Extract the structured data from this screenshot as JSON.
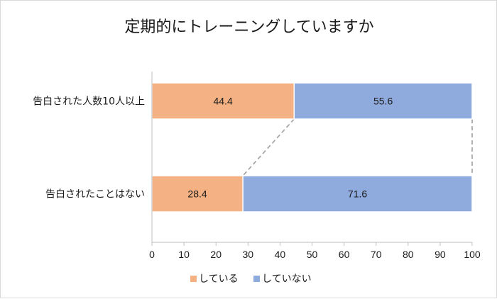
{
  "chart_data": {
    "type": "bar",
    "stacked": true,
    "orientation": "horizontal",
    "title": "定期的にトレーニングしていますか",
    "categories": [
      "告白された人数10人以上",
      "告白されたことはない"
    ],
    "series": [
      {
        "name": "している",
        "values": [
          44.4,
          28.4
        ],
        "color": "#f4b183"
      },
      {
        "name": "していない",
        "values": [
          55.6,
          71.6
        ],
        "color": "#8faadc"
      }
    ],
    "xlim": [
      0,
      100
    ],
    "xticks": [
      "0",
      "10",
      "20",
      "30",
      "40",
      "50",
      "60",
      "70",
      "80",
      "90",
      "100"
    ],
    "series_lines": true,
    "grid": false,
    "legend": "bottom"
  }
}
